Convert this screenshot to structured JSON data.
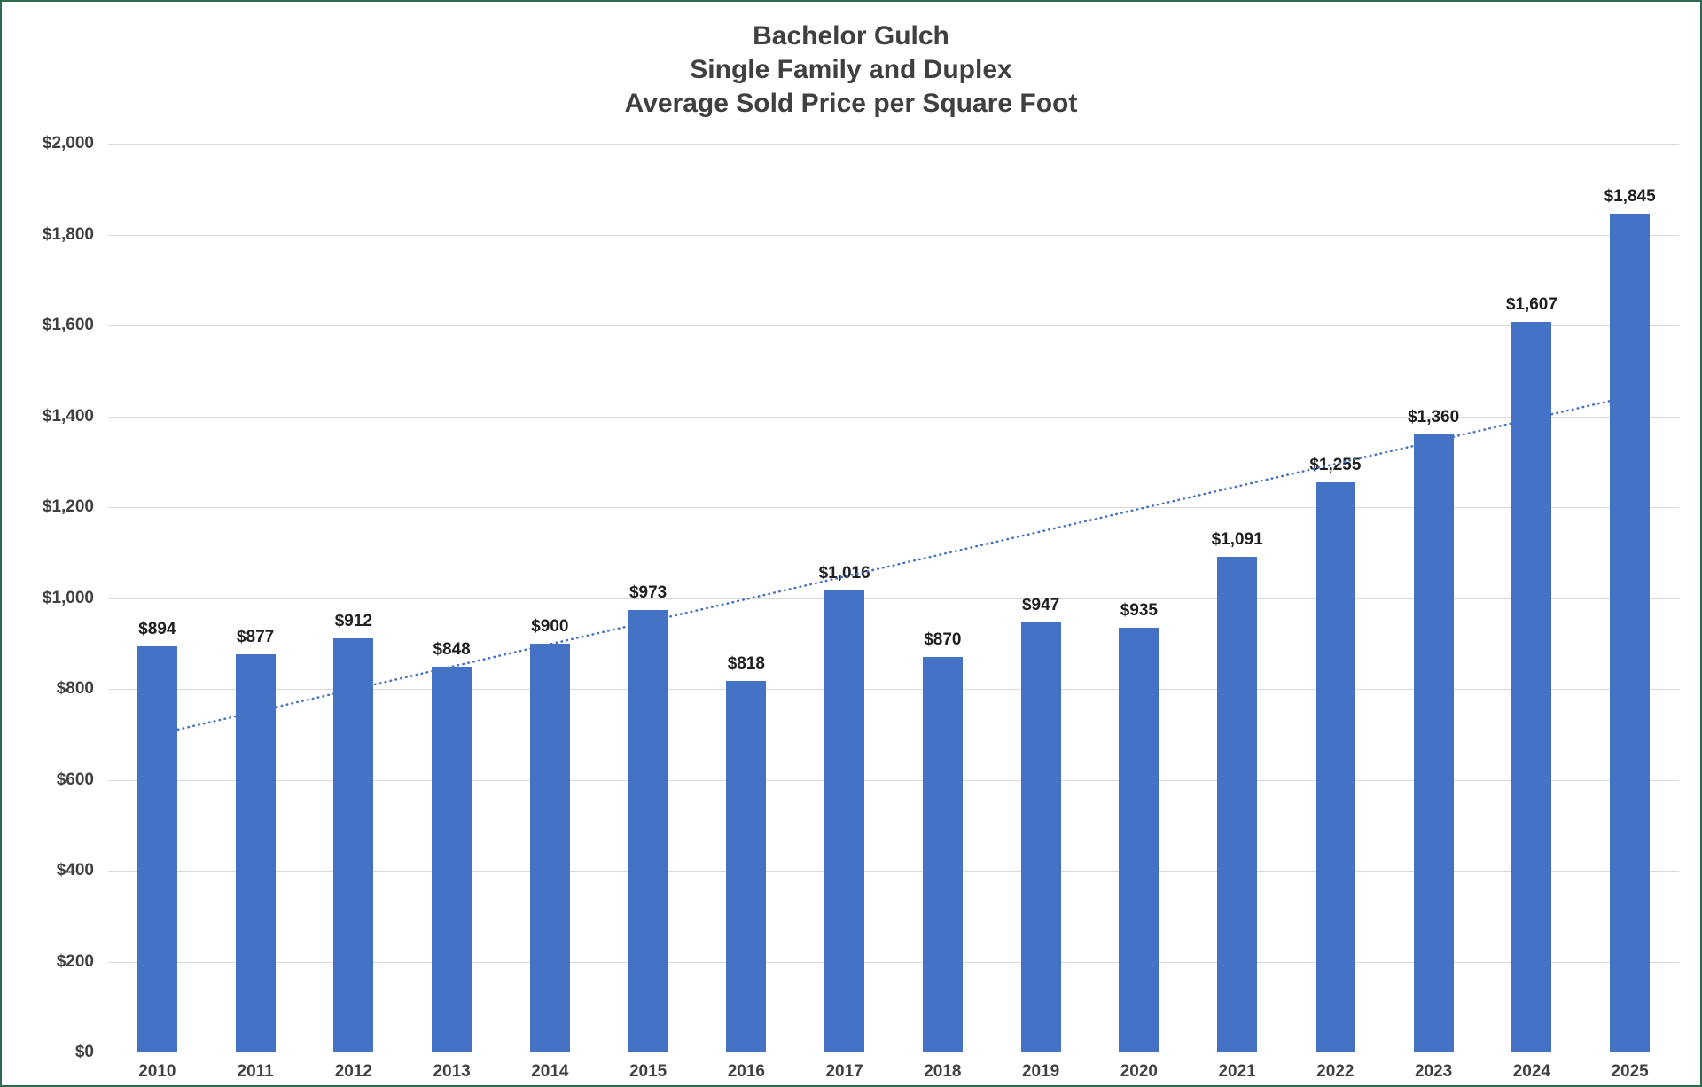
{
  "chart_data": {
    "type": "bar",
    "title_lines": [
      "Bachelor Gulch",
      "Single Family and Duplex",
      "Average Sold Price per Square Foot"
    ],
    "categories": [
      "2010",
      "2011",
      "2012",
      "2013",
      "2014",
      "2015",
      "2016",
      "2017",
      "2018",
      "2019",
      "2020",
      "2021",
      "2022",
      "2023",
      "2024",
      "2025"
    ],
    "values": [
      894,
      877,
      912,
      848,
      900,
      973,
      818,
      1016,
      870,
      947,
      935,
      1091,
      1255,
      1360,
      1607,
      1845
    ],
    "value_labels": [
      "$894",
      "$877",
      "$912",
      "$848",
      "$900",
      "$973",
      "$818",
      "$1,016",
      "$870",
      "$947",
      "$935",
      "$1,091",
      "$1,255",
      "$1,360",
      "$1,607",
      "$1,845"
    ],
    "xlabel": "",
    "ylabel": "",
    "ylim": [
      0,
      2000
    ],
    "ytick_values": [
      0,
      200,
      400,
      600,
      800,
      1000,
      1200,
      1400,
      1600,
      1800,
      2000
    ],
    "ytick_labels": [
      "$0",
      "$200",
      "$400",
      "$600",
      "$800",
      "$1,000",
      "$1,200",
      "$1,400",
      "$1,600",
      "$1,800",
      "$2,000"
    ],
    "grid": true,
    "legend": "none",
    "trendline": {
      "type": "linear",
      "style": "dotted",
      "start_value": 700,
      "end_value": 1444
    },
    "colors": {
      "bar": "#4472C4",
      "trend": "#4472C4",
      "grid": "#D9D9D9",
      "axis": "#404040",
      "title": "#404040",
      "label": "#1F1F1F",
      "border": "#2D6A4F",
      "bg": "#FFFFFF"
    }
  }
}
